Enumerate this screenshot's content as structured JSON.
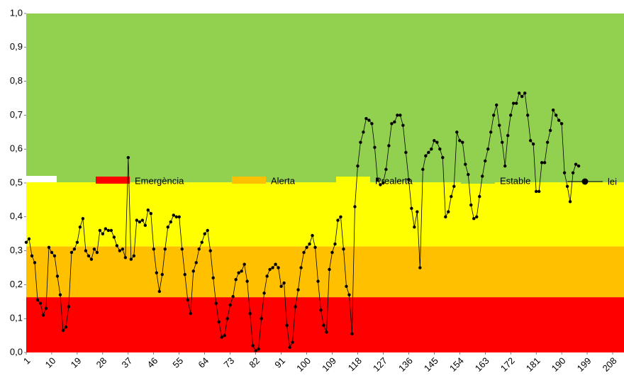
{
  "chart_data": {
    "type": "line",
    "bands": [
      {
        "name": "Emergència",
        "color": "#ff0000",
        "value": 0.163
      },
      {
        "name": "Alerta",
        "color": "#ffc000",
        "value": 0.15
      },
      {
        "name": "Prealerta",
        "color": "#ffff00",
        "value": 0.189
      },
      {
        "name": "Estable",
        "color": "#92d050",
        "value": 0.498
      }
    ],
    "x": [
      1,
      2,
      3,
      4,
      5,
      6,
      7,
      8,
      9,
      10,
      11,
      12,
      13,
      14,
      15,
      16,
      17,
      18,
      19,
      20,
      21,
      22,
      23,
      24,
      25,
      26,
      27,
      28,
      29,
      30,
      31,
      32,
      33,
      34,
      35,
      36,
      37,
      38,
      39,
      40,
      41,
      42,
      43,
      44,
      45,
      46,
      47,
      48,
      49,
      50,
      51,
      52,
      53,
      54,
      55,
      56,
      57,
      58,
      59,
      60,
      61,
      62,
      63,
      64,
      65,
      66,
      67,
      68,
      69,
      70,
      71,
      72,
      73,
      74,
      75,
      76,
      77,
      78,
      79,
      80,
      81,
      82,
      83,
      84,
      85,
      86,
      87,
      88,
      89,
      90,
      91,
      92,
      93,
      94,
      95,
      96,
      97,
      98,
      99,
      100,
      101,
      102,
      103,
      104,
      105,
      106,
      107,
      108,
      109,
      110,
      111,
      112,
      113,
      114,
      115,
      116,
      117,
      118,
      119,
      120,
      121,
      122,
      123,
      124,
      125,
      126,
      127,
      128,
      129,
      130,
      131,
      132,
      133,
      134,
      135,
      136,
      137,
      138,
      139,
      140,
      141,
      142,
      143,
      144,
      145,
      146,
      147,
      148,
      149,
      150,
      151,
      152,
      153,
      154,
      155,
      156,
      157,
      158,
      159,
      160,
      161,
      162,
      163,
      164,
      165,
      166,
      167,
      168,
      169,
      170,
      171,
      172,
      173,
      174,
      175,
      176,
      177,
      178,
      179,
      180,
      181,
      182,
      183,
      184,
      185,
      186,
      187,
      188,
      189,
      190,
      191,
      192,
      193,
      194,
      195,
      196
    ],
    "series": [
      {
        "name": "lei",
        "color": "#000000",
        "values": [
          0.325,
          0.335,
          0.285,
          0.265,
          0.155,
          0.145,
          0.11,
          0.13,
          0.31,
          0.295,
          0.285,
          0.225,
          0.17,
          0.065,
          0.075,
          0.135,
          0.295,
          0.305,
          0.325,
          0.37,
          0.395,
          0.3,
          0.285,
          0.275,
          0.305,
          0.295,
          0.36,
          0.35,
          0.365,
          0.36,
          0.36,
          0.34,
          0.315,
          0.3,
          0.305,
          0.28,
          0.575,
          0.275,
          0.285,
          0.39,
          0.385,
          0.39,
          0.375,
          0.42,
          0.41,
          0.305,
          0.235,
          0.18,
          0.23,
          0.305,
          0.37,
          0.385,
          0.405,
          0.4,
          0.4,
          0.305,
          0.23,
          0.155,
          0.115,
          0.24,
          0.265,
          0.305,
          0.325,
          0.35,
          0.36,
          0.3,
          0.22,
          0.145,
          0.09,
          0.045,
          0.05,
          0.1,
          0.14,
          0.165,
          0.215,
          0.235,
          0.24,
          0.26,
          0.21,
          0.115,
          0.02,
          0.005,
          0.01,
          0.1,
          0.175,
          0.225,
          0.245,
          0.25,
          0.26,
          0.25,
          0.195,
          0.205,
          0.08,
          0.015,
          0.03,
          0.135,
          0.185,
          0.25,
          0.295,
          0.31,
          0.32,
          0.345,
          0.31,
          0.21,
          0.125,
          0.08,
          0.06,
          0.245,
          0.295,
          0.32,
          0.39,
          0.4,
          0.305,
          0.195,
          0.17,
          0.055,
          0.43,
          0.55,
          0.62,
          0.65,
          0.69,
          0.685,
          0.675,
          0.605,
          0.51,
          0.495,
          0.5,
          0.54,
          0.61,
          0.675,
          0.68,
          0.7,
          0.7,
          0.67,
          0.59,
          0.51,
          0.425,
          0.37,
          0.415,
          0.25,
          0.54,
          0.58,
          0.59,
          0.6,
          0.625,
          0.62,
          0.6,
          0.575,
          0.4,
          0.415,
          0.46,
          0.49,
          0.65,
          0.625,
          0.62,
          0.555,
          0.525,
          0.435,
          0.395,
          0.4,
          0.46,
          0.52,
          0.565,
          0.6,
          0.65,
          0.7,
          0.73,
          0.67,
          0.62,
          0.55,
          0.64,
          0.7,
          0.735,
          0.735,
          0.765,
          0.755,
          0.765,
          0.7,
          0.625,
          0.615,
          0.475,
          0.475,
          0.56,
          0.56,
          0.62,
          0.655,
          0.715,
          0.7,
          0.685,
          0.675,
          0.53,
          0.49,
          0.445,
          0.53,
          0.555,
          0.55
        ]
      }
    ],
    "xlim": [
      1,
      212
    ],
    "xticks": [
      1,
      10,
      19,
      28,
      37,
      46,
      55,
      64,
      73,
      82,
      91,
      100,
      109,
      118,
      127,
      136,
      145,
      154,
      163,
      172,
      181,
      190,
      199,
      208
    ],
    "ylim": [
      0,
      1
    ],
    "yticks": [
      {
        "value": 0,
        "label": "0,0"
      },
      {
        "value": 0.1,
        "label": "0,1"
      },
      {
        "value": 0.2,
        "label": "0,2"
      },
      {
        "value": 0.3,
        "label": "0,3"
      },
      {
        "value": 0.4,
        "label": "0,4"
      },
      {
        "value": 0.5,
        "label": "0,5"
      },
      {
        "value": 0.6,
        "label": "0,6"
      },
      {
        "value": 0.7,
        "label": "0,7"
      },
      {
        "value": 0.8,
        "label": "0,8"
      },
      {
        "value": 0.9,
        "label": "0,9"
      },
      {
        "value": 1,
        "label": "1,0"
      }
    ]
  }
}
